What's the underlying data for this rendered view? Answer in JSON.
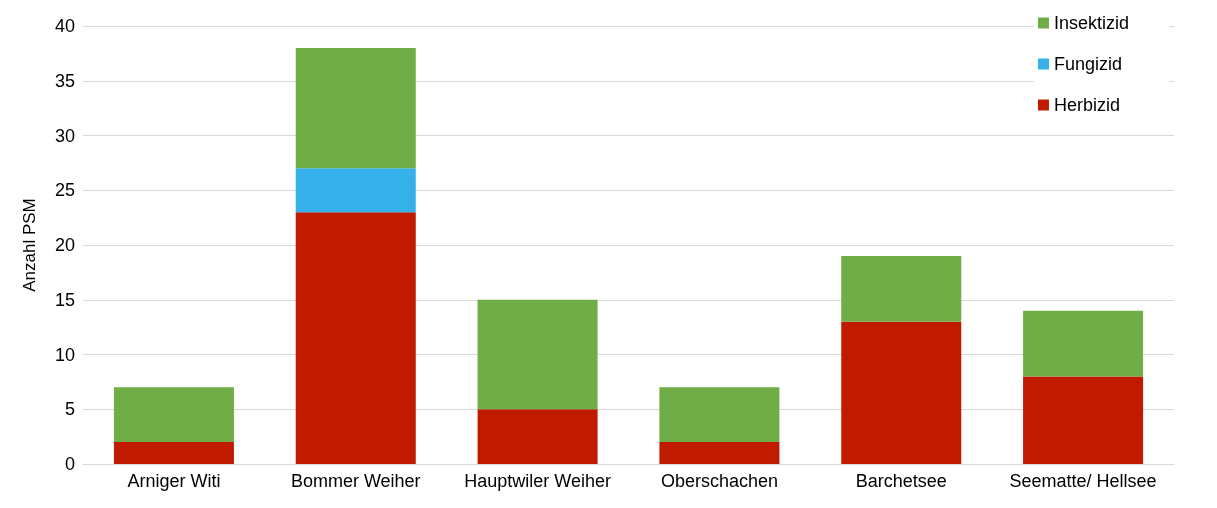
{
  "chart_data": {
    "type": "bar",
    "stacked": true,
    "ylabel": "Anzahl PSM",
    "categories": [
      "Arniger Witi",
      "Bommer Weiher",
      "Hauptwiler Weiher",
      "Oberschachen",
      "Barchetsee",
      "Seematte/ Hellsee"
    ],
    "series": [
      {
        "name": "Herbizid",
        "color": "#c01a00",
        "values": [
          2,
          23,
          5,
          2,
          13,
          8
        ]
      },
      {
        "name": "Fungizid",
        "color": "#35b0e8",
        "values": [
          null,
          4,
          null,
          null,
          null,
          null
        ]
      },
      {
        "name": "Insektizid",
        "color": "#70ad47",
        "values": [
          5,
          11,
          10,
          5,
          6,
          6
        ]
      }
    ],
    "ylim": [
      0,
      40
    ],
    "yticks": [
      0,
      5,
      10,
      15,
      20,
      25,
      30,
      35,
      40
    ],
    "grid": "y",
    "legend": "top right"
  }
}
